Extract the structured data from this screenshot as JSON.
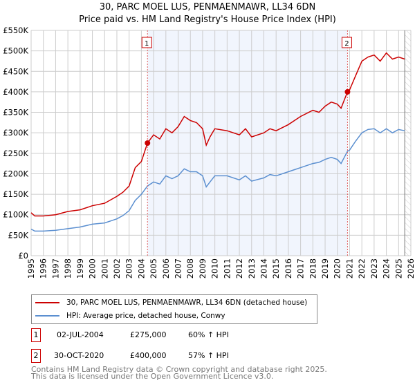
{
  "chart_data": {
    "type": "line",
    "title": "30, PARC MOEL LUS, PENMAENMAWR, LL34 6DN",
    "subtitle": "Price paid vs. HM Land Registry's House Price Index (HPI)",
    "xlim": [
      1995,
      2026
    ],
    "ylim": [
      0,
      550000
    ],
    "x_ticks": [
      "1995",
      "1996",
      "1997",
      "1998",
      "1999",
      "2000",
      "2001",
      "2002",
      "2003",
      "2004",
      "2005",
      "2006",
      "2007",
      "2008",
      "2009",
      "2010",
      "2011",
      "2012",
      "2013",
      "2014",
      "2015",
      "2016",
      "2017",
      "2018",
      "2019",
      "2020",
      "2021",
      "2022",
      "2023",
      "2024",
      "2025",
      "2026"
    ],
    "y_ticks": [
      {
        "v": 0,
        "l": "£0"
      },
      {
        "v": 50000,
        "l": "£50K"
      },
      {
        "v": 100000,
        "l": "£100K"
      },
      {
        "v": 150000,
        "l": "£150K"
      },
      {
        "v": 200000,
        "l": "£200K"
      },
      {
        "v": 250000,
        "l": "£250K"
      },
      {
        "v": 300000,
        "l": "£300K"
      },
      {
        "v": 350000,
        "l": "£350K"
      },
      {
        "v": 400000,
        "l": "£400K"
      },
      {
        "v": 450000,
        "l": "£450K"
      },
      {
        "v": 500000,
        "l": "£500K"
      },
      {
        "v": 550000,
        "l": "£550K"
      }
    ],
    "grid": true,
    "x": [
      1995,
      1995.3,
      1996,
      1997,
      1998,
      1999,
      2000,
      2001,
      2002,
      2002.5,
      2003,
      2003.5,
      2004,
      2004.5,
      2005,
      2005.5,
      2006,
      2006.5,
      2007,
      2007.5,
      2008,
      2008.5,
      2009,
      2009.3,
      2009.6,
      2010,
      2011,
      2012,
      2012.5,
      2013,
      2014,
      2014.5,
      2015,
      2016,
      2016.5,
      2017,
      2018,
      2018.5,
      2019,
      2019.5,
      2020,
      2020.3,
      2020.83,
      2021,
      2021.5,
      2022,
      2022.5,
      2023,
      2023.5,
      2024,
      2024.5,
      2025,
      2025.5
    ],
    "series": [
      {
        "name": "30, PARC MOEL LUS, PENMAENMAWR, LL34 6DN (detached house)",
        "color": "#cc0000",
        "values": [
          105000,
          97000,
          97000,
          100000,
          108000,
          112000,
          122000,
          128000,
          145000,
          155000,
          170000,
          215000,
          230000,
          275000,
          295000,
          285000,
          310000,
          300000,
          315000,
          340000,
          330000,
          325000,
          310000,
          270000,
          290000,
          310000,
          305000,
          295000,
          310000,
          290000,
          300000,
          310000,
          305000,
          320000,
          330000,
          340000,
          355000,
          350000,
          365000,
          375000,
          370000,
          360000,
          400000,
          405000,
          440000,
          475000,
          485000,
          490000,
          475000,
          495000,
          480000,
          485000,
          480000
        ]
      },
      {
        "name": "HPI: Average price, detached house, Conwy",
        "color": "#5b8fd0",
        "values": [
          65000,
          60000,
          60000,
          62000,
          66000,
          70000,
          77000,
          80000,
          90000,
          98000,
          110000,
          135000,
          150000,
          170000,
          180000,
          175000,
          195000,
          188000,
          195000,
          212000,
          205000,
          205000,
          195000,
          168000,
          180000,
          195000,
          195000,
          185000,
          195000,
          182000,
          190000,
          198000,
          195000,
          205000,
          210000,
          215000,
          225000,
          228000,
          235000,
          240000,
          235000,
          225000,
          255000,
          258000,
          280000,
          300000,
          308000,
          310000,
          300000,
          310000,
          300000,
          308000,
          305000
        ]
      }
    ],
    "sales": [
      {
        "id": "1",
        "x": 2004.5,
        "price": 275000,
        "date": "02-JUL-2004",
        "price_label": "£275,000",
        "hpi": "60% ↑ HPI"
      },
      {
        "id": "2",
        "x": 2020.83,
        "price": 400000,
        "date": "30-OCT-2020",
        "price_label": "£400,000",
        "hpi": "57% ↑ HPI"
      }
    ],
    "shaded_range": [
      2004.5,
      2020.83
    ],
    "forecast_from": 2025.5,
    "legend_placement": "below"
  },
  "footer": [
    "Contains HM Land Registry data © Crown copyright and database right 2025.",
    "This data is licensed under the Open Government Licence v3.0."
  ]
}
